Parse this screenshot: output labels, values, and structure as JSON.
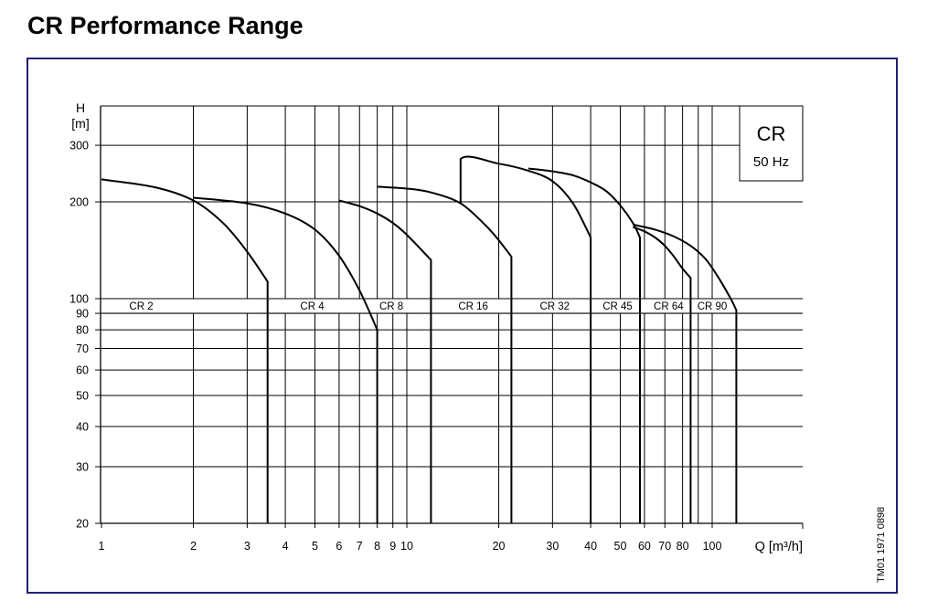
{
  "page_title": "CR Performance Range",
  "chart_data": {
    "type": "line",
    "title": "",
    "xlabel": "Q [m³/h]",
    "ylabel_line1": "H",
    "ylabel_line2": "[m]",
    "x_scale": "log",
    "y_scale": "log",
    "xlim": [
      1,
      150
    ],
    "ylim": [
      20,
      400
    ],
    "grid": true,
    "x_ticks": [
      1,
      2,
      3,
      4,
      5,
      6,
      7,
      8,
      9,
      10,
      20,
      30,
      40,
      50,
      60,
      70,
      80,
      100
    ],
    "x_tick_labels": [
      "1",
      "2",
      "3",
      "4",
      "5",
      "6",
      "7",
      "8",
      "9",
      "10",
      "20",
      "30",
      "40",
      "50",
      "60",
      "70",
      "80",
      "100"
    ],
    "x_grid_lines": [
      2,
      3,
      4,
      5,
      6,
      7,
      8,
      9,
      10,
      20,
      30,
      40,
      50,
      60,
      70,
      80,
      90,
      100
    ],
    "y_ticks": [
      20,
      30,
      40,
      50,
      60,
      70,
      80,
      90,
      100,
      200,
      300
    ],
    "y_tick_labels": [
      "20",
      "30",
      "40",
      "50",
      "60",
      "70",
      "80",
      "90",
      "100",
      "200",
      "300"
    ],
    "legend_box": {
      "title": "CR",
      "subtitle": "50 Hz"
    },
    "watermark_code": "TM01 1971 0898",
    "series": [
      {
        "name": "CR 2",
        "label_x": 1.35,
        "label_y": 96,
        "points": [
          [
            1,
            235
          ],
          [
            1.5,
            222
          ],
          [
            2,
            202
          ],
          [
            2.5,
            172
          ],
          [
            3,
            140
          ],
          [
            3.5,
            113
          ],
          [
            3.5,
            20
          ]
        ]
      },
      {
        "name": "CR 4",
        "label_x": 4.9,
        "label_y": 96,
        "points": [
          [
            2,
            206
          ],
          [
            3,
            198
          ],
          [
            4,
            184
          ],
          [
            5,
            164
          ],
          [
            6,
            136
          ],
          [
            7,
            106
          ],
          [
            8,
            80
          ],
          [
            8,
            20
          ]
        ]
      },
      {
        "name": "CR 8",
        "label_x": 8.9,
        "label_y": 96,
        "points": [
          [
            6,
            202
          ],
          [
            7,
            194
          ],
          [
            8,
            184
          ],
          [
            9,
            172
          ],
          [
            10,
            158
          ],
          [
            12,
            132
          ],
          [
            12,
            20
          ]
        ]
      },
      {
        "name": "CR 16",
        "label_x": 16.5,
        "label_y": 96,
        "points": [
          [
            8,
            223
          ],
          [
            10,
            220
          ],
          [
            12,
            214
          ],
          [
            15,
            198
          ],
          [
            18,
            170
          ],
          [
            20,
            152
          ],
          [
            22,
            135
          ],
          [
            22,
            20
          ]
        ]
      },
      {
        "name": "CR 32",
        "label_x": 30.5,
        "label_y": 96,
        "points": [
          [
            15,
            198
          ],
          [
            15,
            272
          ],
          [
            20,
            263
          ],
          [
            25,
            250
          ],
          [
            30,
            232
          ],
          [
            35,
            198
          ],
          [
            40,
            155
          ],
          [
            40,
            20
          ]
        ]
      },
      {
        "name": "CR 45",
        "label_x": 49,
        "label_y": 96,
        "points": [
          [
            25,
            254
          ],
          [
            30,
            249
          ],
          [
            35,
            242
          ],
          [
            40,
            230
          ],
          [
            45,
            216
          ],
          [
            50,
            195
          ],
          [
            55,
            172
          ],
          [
            58,
            155
          ],
          [
            58,
            20
          ]
        ]
      },
      {
        "name": "CR 64",
        "label_x": 72,
        "label_y": 96,
        "points": [
          [
            55,
            167
          ],
          [
            60,
            162
          ],
          [
            65,
            155
          ],
          [
            70,
            146
          ],
          [
            75,
            135
          ],
          [
            80,
            124
          ],
          [
            85,
            116
          ],
          [
            85,
            20
          ]
        ]
      },
      {
        "name": "CR 90",
        "label_x": 100,
        "label_y": 96,
        "points": [
          [
            55,
            170
          ],
          [
            65,
            164
          ],
          [
            75,
            156
          ],
          [
            85,
            146
          ],
          [
            95,
            133
          ],
          [
            105,
            116
          ],
          [
            115,
            100
          ],
          [
            120,
            92
          ],
          [
            120,
            20
          ]
        ]
      }
    ]
  }
}
